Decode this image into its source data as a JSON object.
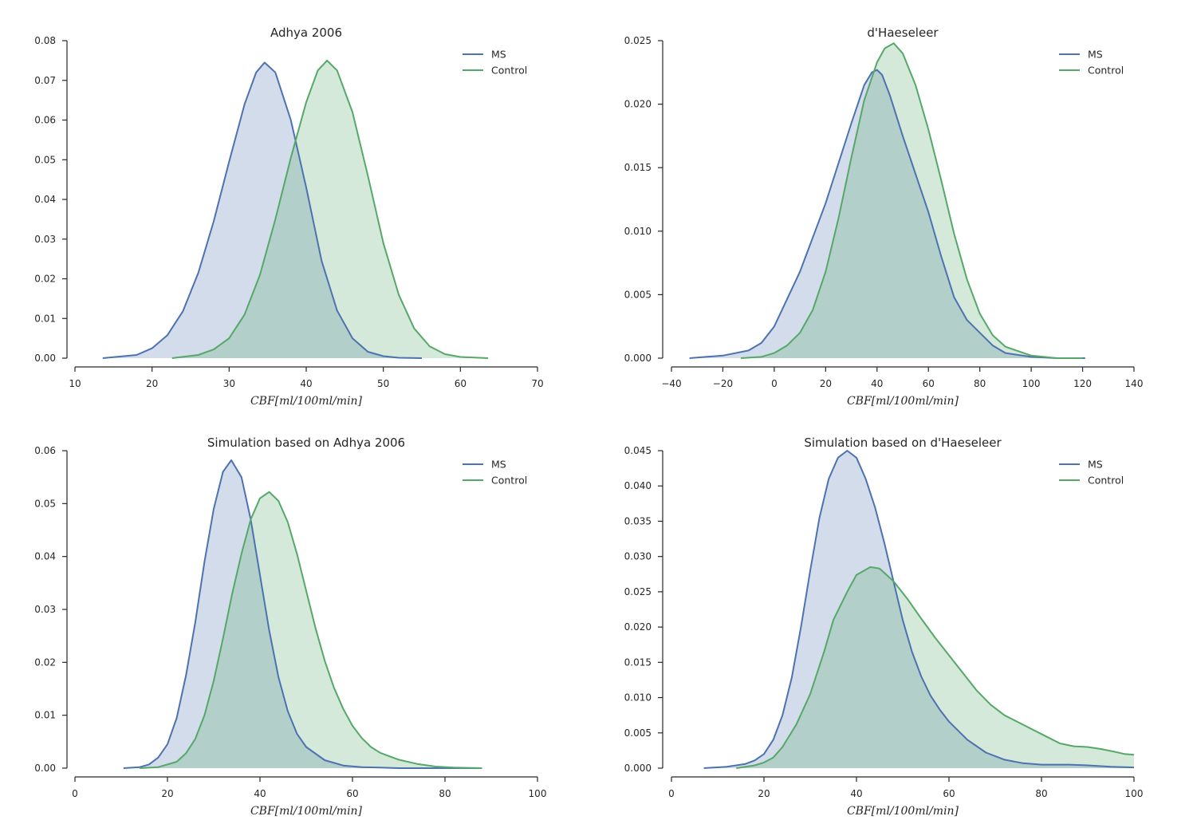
{
  "colors": {
    "ms": "#4c72b0",
    "control": "#55a868"
  },
  "chart_data": [
    {
      "type": "area",
      "title": "Adhya 2006",
      "xlabel": "CBF[ml/100ml/min]",
      "ylabel": "",
      "xlim": [
        10,
        70
      ],
      "ylim": [
        0,
        0.08
      ],
      "xticks": [
        10,
        20,
        30,
        40,
        50,
        60,
        70
      ],
      "yticks": [
        "0.00",
        "0.01",
        "0.02",
        "0.03",
        "0.04",
        "0.05",
        "0.06",
        "0.07",
        "0.08"
      ],
      "legend_position": "top-right",
      "series": [
        {
          "name": "MS",
          "x": [
            13.6,
            18,
            20,
            22,
            24,
            26,
            28,
            30,
            32,
            33.5,
            34.6,
            36,
            38,
            40,
            42,
            44,
            46,
            48,
            50,
            52,
            55
          ],
          "y": [
            0.0,
            0.0008,
            0.0025,
            0.0058,
            0.0118,
            0.0215,
            0.0345,
            0.0495,
            0.064,
            0.072,
            0.0745,
            0.072,
            0.06,
            0.043,
            0.0245,
            0.012,
            0.005,
            0.0016,
            0.0005,
            0.0001,
            0.0
          ]
        },
        {
          "name": "Control",
          "x": [
            22.6,
            26,
            28,
            30,
            32,
            34,
            36,
            38,
            40,
            41.5,
            42.7,
            44,
            46,
            48,
            50,
            52,
            54,
            56,
            58,
            60,
            63.6
          ],
          "y": [
            0.0,
            0.0008,
            0.0022,
            0.005,
            0.011,
            0.021,
            0.035,
            0.0505,
            0.0645,
            0.0725,
            0.075,
            0.0725,
            0.062,
            0.046,
            0.029,
            0.016,
            0.0075,
            0.003,
            0.001,
            0.0003,
            0.0
          ]
        }
      ]
    },
    {
      "type": "area",
      "title": "d'Haeseleer",
      "xlabel": "CBF[ml/100ml/min]",
      "ylabel": "",
      "xlim": [
        -40,
        140
      ],
      "ylim": [
        0,
        0.025
      ],
      "xticks": [
        -40,
        -20,
        0,
        20,
        40,
        60,
        80,
        100,
        120,
        140
      ],
      "xtick_labels": [
        "−40",
        "−20",
        "0",
        "20",
        "40",
        "60",
        "80",
        "100",
        "120",
        "140"
      ],
      "yticks": [
        "0.000",
        "0.005",
        "0.010",
        "0.015",
        "0.020",
        "0.025"
      ],
      "legend_position": "top-right",
      "series": [
        {
          "name": "MS",
          "x": [
            -33,
            -20,
            -10,
            -5,
            0,
            10,
            20,
            30,
            35,
            38,
            40,
            42,
            45,
            50,
            55,
            60,
            65,
            70,
            75,
            80,
            85,
            90,
            100,
            110,
            121
          ],
          "y": [
            0.0,
            0.0002,
            0.0006,
            0.0012,
            0.0025,
            0.0068,
            0.0122,
            0.0185,
            0.0215,
            0.0225,
            0.0227,
            0.0223,
            0.0207,
            0.0175,
            0.0145,
            0.0115,
            0.008,
            0.0048,
            0.003,
            0.002,
            0.001,
            0.0004,
            0.0001,
            0.0,
            0.0
          ]
        },
        {
          "name": "Control",
          "x": [
            -13,
            -5,
            0,
            5,
            10,
            15,
            20,
            25,
            30,
            35,
            40,
            43,
            46.5,
            50,
            55,
            60,
            65,
            70,
            75,
            80,
            85,
            90,
            100,
            110,
            120
          ],
          "y": [
            0.0,
            0.0001,
            0.0004,
            0.001,
            0.002,
            0.0038,
            0.0068,
            0.011,
            0.0158,
            0.0203,
            0.0233,
            0.0244,
            0.0248,
            0.024,
            0.0215,
            0.018,
            0.014,
            0.0098,
            0.0062,
            0.0035,
            0.0018,
            0.0009,
            0.0002,
            0.0,
            0.0
          ]
        }
      ]
    },
    {
      "type": "area",
      "title": "Simulation based on Adhya 2006",
      "xlabel": "CBF[ml/100ml/min]",
      "ylabel": "",
      "xlim": [
        0,
        100
      ],
      "ylim": [
        0,
        0.06
      ],
      "xticks": [
        0,
        20,
        40,
        60,
        80,
        100
      ],
      "yticks": [
        "0.00",
        "0.01",
        "0.02",
        "0.03",
        "0.04",
        "0.05",
        "0.06"
      ],
      "legend_position": "top-right",
      "series": [
        {
          "name": "MS",
          "x": [
            10.5,
            14,
            16,
            18,
            20,
            22,
            24,
            26,
            28,
            30,
            32,
            33.8,
            36,
            38,
            40,
            42,
            44,
            46,
            48,
            50,
            54,
            58,
            62,
            66,
            70,
            80,
            88
          ],
          "y": [
            0.0,
            0.0002,
            0.0007,
            0.002,
            0.0045,
            0.0095,
            0.0175,
            0.0275,
            0.039,
            0.049,
            0.056,
            0.0582,
            0.055,
            0.047,
            0.0365,
            0.026,
            0.0172,
            0.0108,
            0.0065,
            0.004,
            0.0015,
            0.0005,
            0.0002,
            0.0001,
            0.0,
            0.0,
            0.0
          ]
        },
        {
          "name": "Control",
          "x": [
            14,
            18,
            22,
            24,
            26,
            28,
            30,
            32,
            34,
            36,
            38,
            40,
            42,
            44,
            46,
            48,
            50,
            52,
            54,
            56,
            58,
            60,
            62,
            64,
            66,
            70,
            74,
            78,
            82,
            88
          ],
          "y": [
            0.0,
            0.0002,
            0.0012,
            0.0028,
            0.0055,
            0.01,
            0.0165,
            0.0245,
            0.033,
            0.0405,
            0.047,
            0.051,
            0.0522,
            0.0505,
            0.0465,
            0.0405,
            0.0335,
            0.0265,
            0.0203,
            0.0152,
            0.0112,
            0.008,
            0.0057,
            0.004,
            0.0029,
            0.0016,
            0.0008,
            0.0003,
            0.0001,
            0.0
          ]
        }
      ]
    },
    {
      "type": "area",
      "title": "Simulation based on d'Haeseleer",
      "xlabel": "CBF[ml/100ml/min]",
      "ylabel": "",
      "xlim": [
        0,
        100
      ],
      "ylim": [
        0,
        0.045
      ],
      "xticks": [
        0,
        20,
        40,
        60,
        80,
        100
      ],
      "yticks": [
        "0.000",
        "0.005",
        "0.010",
        "0.015",
        "0.020",
        "0.025",
        "0.030",
        "0.035",
        "0.040",
        "0.045"
      ],
      "legend_position": "top-right",
      "series": [
        {
          "name": "MS",
          "x": [
            7,
            12,
            16,
            18,
            20,
            22,
            24,
            26,
            28,
            30,
            32,
            34,
            36,
            38,
            40,
            42,
            44,
            46,
            48,
            50,
            52,
            54,
            56,
            58,
            60,
            64,
            68,
            72,
            76,
            80,
            86,
            90,
            95,
            100
          ],
          "y": [
            0.0,
            0.0002,
            0.0006,
            0.0011,
            0.002,
            0.004,
            0.0075,
            0.0128,
            0.02,
            0.028,
            0.0355,
            0.041,
            0.044,
            0.045,
            0.044,
            0.041,
            0.037,
            0.032,
            0.0265,
            0.021,
            0.0165,
            0.013,
            0.0103,
            0.0083,
            0.0066,
            0.004,
            0.0022,
            0.0012,
            0.0007,
            0.0005,
            0.0005,
            0.0004,
            0.0002,
            0.0001
          ]
        },
        {
          "name": "Control",
          "x": [
            14,
            18,
            20,
            22,
            24,
            27,
            30,
            33,
            35,
            38,
            40,
            43,
            45,
            48,
            51,
            54,
            57,
            60,
            63,
            66,
            69,
            72,
            75,
            78,
            81,
            84,
            87,
            90,
            93,
            96,
            98,
            100
          ],
          "y": [
            0.0,
            0.0004,
            0.0008,
            0.0015,
            0.003,
            0.0062,
            0.0105,
            0.0165,
            0.021,
            0.025,
            0.0274,
            0.0285,
            0.0283,
            0.0265,
            0.024,
            0.0212,
            0.0185,
            0.016,
            0.0135,
            0.011,
            0.009,
            0.0075,
            0.0065,
            0.0055,
            0.0045,
            0.0035,
            0.0031,
            0.003,
            0.0027,
            0.0023,
            0.002,
            0.0019
          ]
        }
      ]
    }
  ]
}
